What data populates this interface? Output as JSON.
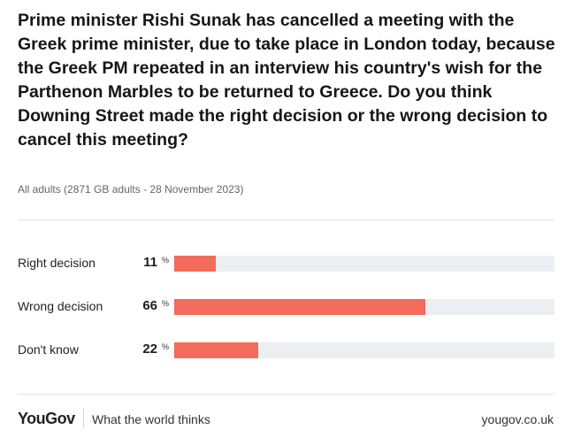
{
  "title": "Prime minister Rishi Sunak has cancelled a meeting with the Greek prime minister, due to take place in London today, because the Greek PM repeated in an interview his country's wish for the Parthenon Marbles to be returned to Greece. Do you think Downing Street made the right decision or the wrong decision to cancel this meeting?",
  "subtitle": "All adults (2871 GB adults - 28 November 2023)",
  "chart_data": {
    "type": "bar",
    "orientation": "horizontal",
    "categories": [
      "Right decision",
      "Wrong decision",
      "Don't know"
    ],
    "values": [
      11,
      66,
      22
    ],
    "value_labels": [
      "11",
      "66",
      "22"
    ],
    "unit": "%",
    "xlim": [
      0,
      100
    ],
    "grid": false
  },
  "footer": {
    "brand": "YouGov",
    "tagline": "What the world thinks",
    "site": "yougov.co.uk"
  },
  "colors": {
    "bar": "#f26b5b",
    "track": "#eceef1"
  }
}
